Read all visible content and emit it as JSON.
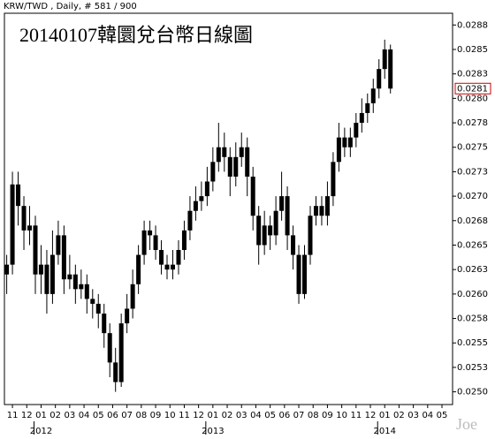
{
  "chart_data": {
    "type": "candlestick",
    "header": "KRW/TWD , Daily, # 581 / 900",
    "title": "20140107韓圜兌台幣日線圖",
    "watermark": "Joe",
    "color": "#000000",
    "last_price": 0.0281,
    "last_price_color": "#cc0000",
    "x": [
      -0.4,
      0,
      0.4,
      0.8,
      1.2,
      1.6,
      2,
      2.4,
      2.8,
      3.2,
      3.6,
      4,
      4.4,
      4.8,
      5.2,
      5.6,
      6,
      6.4,
      6.8,
      7.2,
      7.6,
      8,
      8.4,
      8.8,
      9.2,
      9.6,
      10,
      10.4,
      10.8,
      11.2,
      11.6,
      12,
      12.4,
      12.8,
      13.2,
      13.6,
      14,
      14.4,
      14.8,
      15.2,
      15.6,
      16,
      16.4,
      16.8,
      17.2,
      17.6,
      18,
      18.4,
      18.8,
      19.2,
      19.6,
      20,
      20.4,
      20.8,
      21.2,
      21.6,
      22,
      22.4,
      22.8,
      23.2,
      23.6,
      24,
      24.4,
      24.8,
      25.2,
      25.6,
      26,
      26.4
    ],
    "ohlc": [
      [
        0.0262,
        0.0264,
        0.026,
        0.0263
      ],
      [
        0.0263,
        0.02725,
        0.0262,
        0.02712
      ],
      [
        0.02712,
        0.02725,
        0.0267,
        0.0269
      ],
      [
        0.0269,
        0.027,
        0.02645,
        0.02665
      ],
      [
        0.02665,
        0.0269,
        0.0265,
        0.0267
      ],
      [
        0.0267,
        0.0268,
        0.026,
        0.0262
      ],
      [
        0.0262,
        0.0265,
        0.026,
        0.0263
      ],
      [
        0.0263,
        0.02645,
        0.0258,
        0.026
      ],
      [
        0.026,
        0.02665,
        0.0259,
        0.0264
      ],
      [
        0.0264,
        0.02675,
        0.0263,
        0.0266
      ],
      [
        0.0266,
        0.0267,
        0.026,
        0.02615
      ],
      [
        0.02615,
        0.0264,
        0.02605,
        0.0262
      ],
      [
        0.0262,
        0.0263,
        0.0259,
        0.02605
      ],
      [
        0.02605,
        0.02625,
        0.02595,
        0.0261
      ],
      [
        0.0261,
        0.0262,
        0.0258,
        0.02595
      ],
      [
        0.02595,
        0.02605,
        0.02575,
        0.0259
      ],
      [
        0.0259,
        0.026,
        0.02565,
        0.0258
      ],
      [
        0.0258,
        0.0259,
        0.02545,
        0.0256
      ],
      [
        0.0256,
        0.0257,
        0.02515,
        0.0253
      ],
      [
        0.0253,
        0.02545,
        0.025,
        0.0251
      ],
      [
        0.0251,
        0.0258,
        0.02505,
        0.0257
      ],
      [
        0.0257,
        0.026,
        0.0256,
        0.02585
      ],
      [
        0.02585,
        0.02625,
        0.02575,
        0.0261
      ],
      [
        0.0261,
        0.0265,
        0.026,
        0.0264
      ],
      [
        0.0264,
        0.02675,
        0.0263,
        0.02665
      ],
      [
        0.02665,
        0.02675,
        0.02645,
        0.0266
      ],
      [
        0.0266,
        0.0267,
        0.02635,
        0.02645
      ],
      [
        0.02645,
        0.02655,
        0.0262,
        0.0263
      ],
      [
        0.0263,
        0.0264,
        0.02615,
        0.02625
      ],
      [
        0.02625,
        0.02645,
        0.02615,
        0.0263
      ],
      [
        0.0263,
        0.02655,
        0.0262,
        0.02645
      ],
      [
        0.02645,
        0.02675,
        0.02635,
        0.02665
      ],
      [
        0.02665,
        0.027,
        0.02655,
        0.02685
      ],
      [
        0.02685,
        0.0271,
        0.02675,
        0.02695
      ],
      [
        0.02695,
        0.02715,
        0.02685,
        0.027
      ],
      [
        0.027,
        0.0273,
        0.0269,
        0.02715
      ],
      [
        0.02715,
        0.0275,
        0.02705,
        0.02735
      ],
      [
        0.02735,
        0.02775,
        0.02725,
        0.0275
      ],
      [
        0.0275,
        0.02765,
        0.02725,
        0.0274
      ],
      [
        0.0274,
        0.0275,
        0.027,
        0.0272
      ],
      [
        0.0272,
        0.02755,
        0.0271,
        0.0274
      ],
      [
        0.0274,
        0.02765,
        0.0273,
        0.0275
      ],
      [
        0.0275,
        0.0276,
        0.027,
        0.0272
      ],
      [
        0.0272,
        0.0273,
        0.02665,
        0.0268
      ],
      [
        0.0268,
        0.0269,
        0.0263,
        0.0265
      ],
      [
        0.0265,
        0.02685,
        0.0264,
        0.0267
      ],
      [
        0.0267,
        0.0268,
        0.02645,
        0.0266
      ],
      [
        0.0266,
        0.027,
        0.0265,
        0.02685
      ],
      [
        0.02685,
        0.02725,
        0.02675,
        0.027
      ],
      [
        0.027,
        0.0271,
        0.02645,
        0.0266
      ],
      [
        0.0266,
        0.0267,
        0.02625,
        0.0264
      ],
      [
        0.0264,
        0.0265,
        0.0259,
        0.026
      ],
      [
        0.026,
        0.0265,
        0.02595,
        0.0264
      ],
      [
        0.0264,
        0.0269,
        0.0263,
        0.0268
      ],
      [
        0.0268,
        0.027,
        0.0267,
        0.0269
      ],
      [
        0.0269,
        0.027,
        0.0267,
        0.0268
      ],
      [
        0.0268,
        0.02715,
        0.0267,
        0.027
      ],
      [
        0.027,
        0.02745,
        0.0269,
        0.02735
      ],
      [
        0.02735,
        0.02775,
        0.02725,
        0.0276
      ],
      [
        0.0276,
        0.0277,
        0.0274,
        0.0275
      ],
      [
        0.0275,
        0.0277,
        0.0274,
        0.0276
      ],
      [
        0.0276,
        0.02785,
        0.0275,
        0.02775
      ],
      [
        0.02775,
        0.028,
        0.02765,
        0.02785
      ],
      [
        0.02785,
        0.02805,
        0.02775,
        0.02795
      ],
      [
        0.02795,
        0.0282,
        0.02785,
        0.0281
      ],
      [
        0.0281,
        0.0284,
        0.028,
        0.0283
      ],
      [
        0.0283,
        0.0286,
        0.0282,
        0.0285
      ],
      [
        0.0285,
        0.02855,
        0.02805,
        0.0281
      ]
    ],
    "xlim": [
      -0.56,
      30.74
    ],
    "xticks": [
      {
        "value": 0,
        "label": "11"
      },
      {
        "value": 1,
        "label": "12"
      },
      {
        "value": 2,
        "label": "01"
      },
      {
        "value": 3,
        "label": "02"
      },
      {
        "value": 4,
        "label": "03"
      },
      {
        "value": 5,
        "label": "04"
      },
      {
        "value": 6,
        "label": "05"
      },
      {
        "value": 7,
        "label": "06"
      },
      {
        "value": 8,
        "label": "07"
      },
      {
        "value": 9,
        "label": "08"
      },
      {
        "value": 10,
        "label": "09"
      },
      {
        "value": 11,
        "label": "10"
      },
      {
        "value": 12,
        "label": "11"
      },
      {
        "value": 13,
        "label": "12"
      },
      {
        "value": 14,
        "label": "01"
      },
      {
        "value": 15,
        "label": "02"
      },
      {
        "value": 16,
        "label": "03"
      },
      {
        "value": 17,
        "label": "04"
      },
      {
        "value": 18,
        "label": "05"
      },
      {
        "value": 19,
        "label": "06"
      },
      {
        "value": 20,
        "label": "07"
      },
      {
        "value": 21,
        "label": "08"
      },
      {
        "value": 22,
        "label": "09"
      },
      {
        "value": 23,
        "label": "10"
      },
      {
        "value": 24,
        "label": "11"
      },
      {
        "value": 25,
        "label": "12"
      },
      {
        "value": 26,
        "label": "01"
      },
      {
        "value": 27,
        "label": "02"
      },
      {
        "value": 28,
        "label": "03"
      },
      {
        "value": 29,
        "label": "04"
      },
      {
        "value": 30,
        "label": "05"
      }
    ],
    "year_ticks": [
      {
        "value": 2,
        "label": "2012"
      },
      {
        "value": 14,
        "label": "2013"
      },
      {
        "value": 26,
        "label": "2014"
      }
    ],
    "ylim": [
      0.02487,
      0.02887
    ],
    "yticks": [
      {
        "value": 0.025,
        "label": "0.0250"
      },
      {
        "value": 0.02525,
        "label": "0.0253"
      },
      {
        "value": 0.0255,
        "label": "0.0255"
      },
      {
        "value": 0.02575,
        "label": "0.0258"
      },
      {
        "value": 0.026,
        "label": "0.0260"
      },
      {
        "value": 0.02625,
        "label": "0.0263"
      },
      {
        "value": 0.0265,
        "label": "0.0265"
      },
      {
        "value": 0.02675,
        "label": "0.0268"
      },
      {
        "value": 0.027,
        "label": "0.0270"
      },
      {
        "value": 0.02725,
        "label": "0.0273"
      },
      {
        "value": 0.0275,
        "label": "0.0275"
      },
      {
        "value": 0.02775,
        "label": "0.0278"
      },
      {
        "value": 0.028,
        "label": "0.0280"
      },
      {
        "value": 0.02825,
        "label": "0.0283"
      },
      {
        "value": 0.0285,
        "label": "0.0285"
      },
      {
        "value": 0.02875,
        "label": "0.0288"
      }
    ],
    "grid": false
  }
}
